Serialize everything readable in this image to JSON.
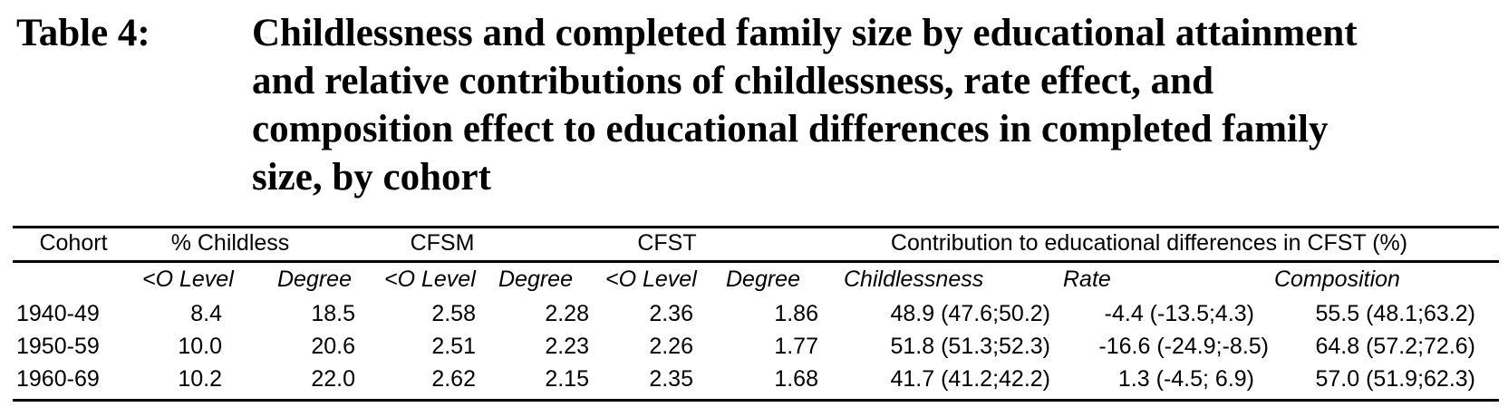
{
  "caption": {
    "label": "Table 4:",
    "lines": [
      "Childlessness and completed family size by educational attainment",
      "and relative contributions of childlessness, rate effect, and",
      "composition effect to educational differences in completed family",
      "size, by cohort"
    ]
  },
  "table": {
    "header_groups": {
      "cohort": "Cohort",
      "childless": "% Childless",
      "cfsm": "CFSM",
      "cfst": "CFST",
      "contribution": "Contribution to educational differences in CFST (%)"
    },
    "subheaders": {
      "childless_olevel": "<O Level",
      "childless_degree": "Degree",
      "cfsm_olevel": "<O Level",
      "cfsm_degree": "Degree",
      "cfst_olevel": "<O Level",
      "cfst_degree": "Degree",
      "childlessness": "Childlessness",
      "rate": "Rate",
      "composition": "Composition"
    },
    "rows": [
      {
        "cohort": "1940-49",
        "childless_olevel": "8.4",
        "childless_degree": "18.5",
        "cfsm_olevel": "2.58",
        "cfsm_degree": "2.28",
        "cfst_olevel": "2.36",
        "cfst_degree": "1.86",
        "childlessness": "48.9 (47.6;50.2)",
        "rate": "-4.4 (-13.5;4.3)",
        "composition": "55.5 (48.1;63.2)"
      },
      {
        "cohort": "1950-59",
        "childless_olevel": "10.0",
        "childless_degree": "20.6",
        "cfsm_olevel": "2.51",
        "cfsm_degree": "2.23",
        "cfst_olevel": "2.26",
        "cfst_degree": "1.77",
        "childlessness": "51.8 (51.3;52.3)",
        "rate": "-16.6 (-24.9;-8.5)",
        "composition": "64.8 (57.2;72.6)"
      },
      {
        "cohort": "1960-69",
        "childless_olevel": "10.2",
        "childless_degree": "22.0",
        "cfsm_olevel": "2.62",
        "cfsm_degree": "2.15",
        "cfst_olevel": "2.35",
        "cfst_degree": "1.68",
        "childlessness": "41.7 (41.2;42.2)",
        "rate": "1.3 (-4.5; 6.9)",
        "composition": "57.0 (51.9;62.3)"
      }
    ]
  }
}
